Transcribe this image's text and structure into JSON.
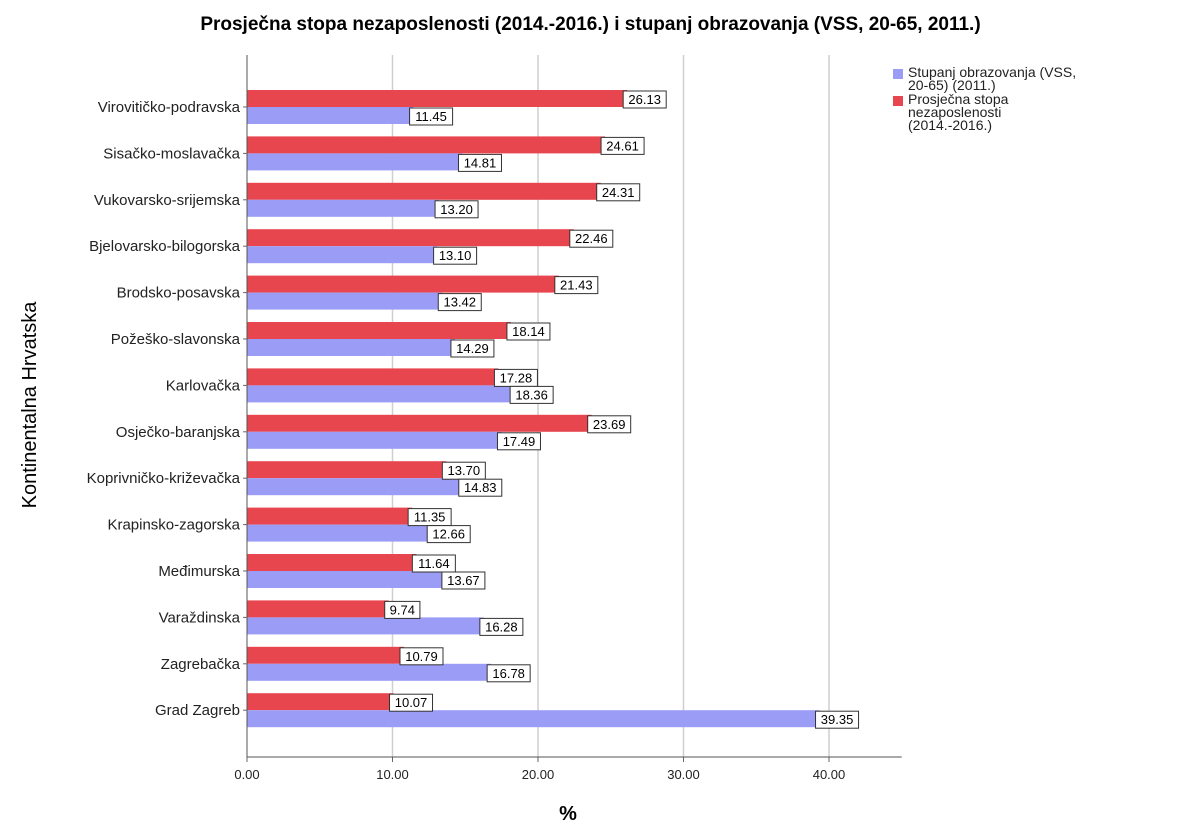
{
  "chart_data": {
    "type": "bar",
    "orientation": "horizontal",
    "title": "Prosječna stopa nezaposlenosti (2014.-2016.) i stupanj obrazovanja (VSS, 20-65, 2011.)",
    "xlabel": "%",
    "ylabel": "Kontinentalna Hrvatska",
    "xlim": [
      0,
      45
    ],
    "xticks": [
      "0.00",
      "10.00",
      "20.00",
      "30.00",
      "40.00"
    ],
    "grid": "vertical",
    "legend_position": "top-right",
    "categories": [
      "Virovitičko-podravska",
      "Sisačko-moslavačka",
      "Vukovarsko-srijemska",
      "Bjelovarsko-bilogorska",
      "Brodsko-posavska",
      "Požeško-slavonska",
      "Karlovačka",
      "Osječko-baranjska",
      "Koprivničko-križevačka",
      "Krapinsko-zagorska",
      "Međimurska",
      "Varaždinska",
      "Zagrebačka",
      "Grad Zagreb"
    ],
    "series": [
      {
        "name": "Prosječna stopa nezaposlenosti (2014.-2016.)",
        "color": "#e8464e",
        "values": [
          26.13,
          24.61,
          24.31,
          22.46,
          21.43,
          18.14,
          17.28,
          23.69,
          13.7,
          11.35,
          11.64,
          9.74,
          10.79,
          10.07
        ],
        "labels": [
          "26.13",
          "24.61",
          "24.31",
          "22.46",
          "21.43",
          "18.14",
          "17.28",
          "23.69",
          "13.70",
          "11.35",
          "11.64",
          "9.74",
          "10.79",
          "10.07"
        ]
      },
      {
        "name": "Stupanj obrazovanja (VSS, 20-65) (2011.)",
        "color": "#9b9cf5",
        "values": [
          11.45,
          14.81,
          13.2,
          13.1,
          13.42,
          14.29,
          18.36,
          17.49,
          14.83,
          12.66,
          13.67,
          16.28,
          16.78,
          39.35
        ],
        "labels": [
          "11.45",
          "14.81",
          "13.20",
          "13.10",
          "13.42",
          "14.29",
          "18.36",
          "17.49",
          "14.83",
          "12.66",
          "13.67",
          "16.28",
          "16.78",
          "39.35"
        ]
      }
    ]
  },
  "legend": {
    "items": [
      {
        "label": "Stupanj obrazovanja (VSS, 20-65) (2011.)",
        "color": "#9b9cf5"
      },
      {
        "label": "Prosječna stopa nezaposlenosti (2014.-2016.)",
        "color": "#e8464e"
      }
    ]
  }
}
